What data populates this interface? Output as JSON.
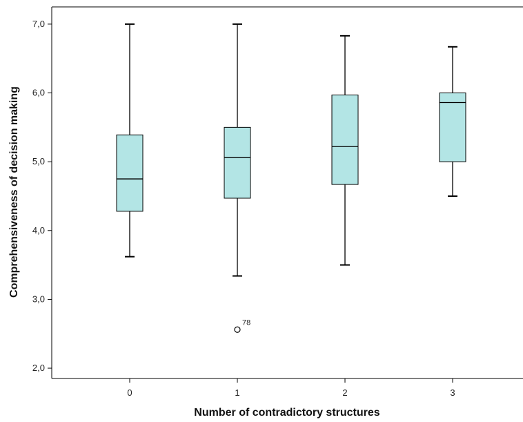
{
  "chart_data": {
    "type": "boxplot",
    "xlabel": "Number of contradictory structures",
    "ylabel": "Comprehensiveness of decision making",
    "ylim": [
      1.85,
      7.25
    ],
    "yticks": [
      2.0,
      3.0,
      4.0,
      5.0,
      6.0,
      7.0
    ],
    "ytick_labels": [
      "2,0",
      "3,0",
      "4,0",
      "5,0",
      "6,0",
      "7,0"
    ],
    "categories": [
      "0",
      "1",
      "2",
      "3"
    ],
    "box_color": "#b3e5e5",
    "boxes": [
      {
        "category": "0",
        "min": 3.62,
        "q1": 4.28,
        "median": 4.75,
        "q3": 5.39,
        "max": 7.0
      },
      {
        "category": "1",
        "min": 3.34,
        "q1": 4.47,
        "median": 5.06,
        "q3": 5.5,
        "max": 7.0
      },
      {
        "category": "2",
        "min": 3.5,
        "q1": 4.67,
        "median": 5.22,
        "q3": 5.97,
        "max": 6.83
      },
      {
        "category": "3",
        "min": 4.5,
        "q1": 5.0,
        "median": 5.86,
        "q3": 6.0,
        "max": 6.67
      }
    ],
    "outliers": [
      {
        "category": "1",
        "value": 2.56,
        "label": "78"
      }
    ]
  }
}
